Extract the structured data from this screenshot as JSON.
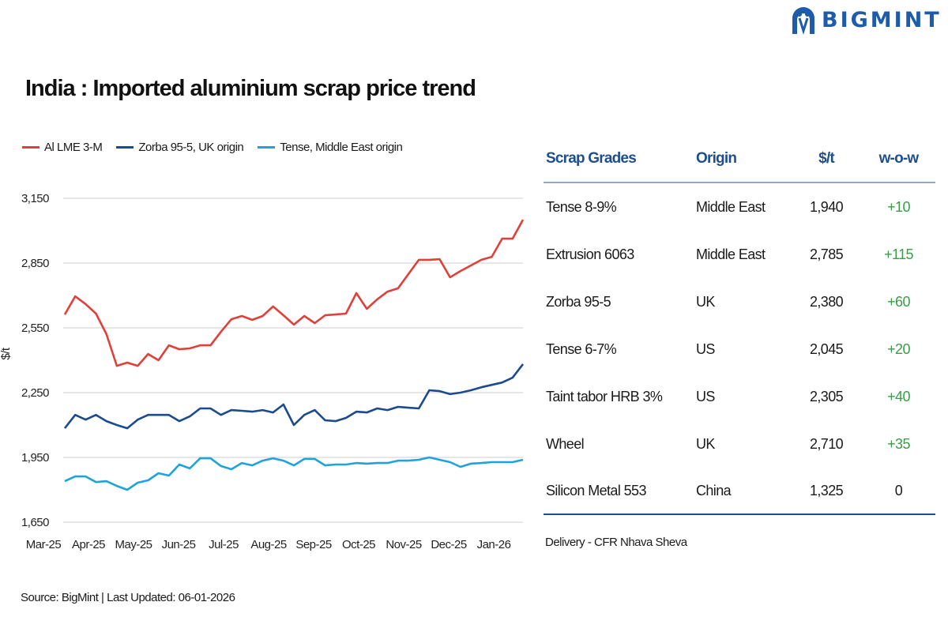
{
  "brand": {
    "name": "BIGMINT",
    "color": "#1f5bab"
  },
  "title": "India : Imported aluminium scrap price trend",
  "chart_data": {
    "type": "line",
    "ylabel": "$/t",
    "xlabel": "",
    "ylim": [
      1650,
      3150
    ],
    "yticks": [
      "3,150",
      "2,850",
      "2,550",
      "2,250",
      "1,950",
      "1,650"
    ],
    "ytick_values": [
      3150,
      2850,
      2550,
      2250,
      1950,
      1650
    ],
    "xticks": [
      "Mar-25",
      "Apr-25",
      "May-25",
      "Jun-25",
      "Jul-25",
      "Aug-25",
      "Sep-25",
      "Oct-25",
      "Nov-25",
      "Dec-25",
      "Jan-26"
    ],
    "grid": true,
    "legend": "top-left",
    "series": [
      {
        "name": "Al LME 3-M",
        "color": "#e0403a",
        "values": [
          2612,
          2696,
          2660,
          2616,
          2521,
          2374,
          2389,
          2374,
          2429,
          2400,
          2469,
          2451,
          2455,
          2469,
          2469,
          2532,
          2590,
          2605,
          2587,
          2605,
          2649,
          2608,
          2565,
          2605,
          2572,
          2608,
          2612,
          2616,
          2711,
          2638,
          2682,
          2718,
          2733,
          2799,
          2865,
          2865,
          2868,
          2784,
          2813,
          2839,
          2865,
          2879,
          2963,
          2963,
          3051
        ]
      },
      {
        "name": "Zorba 95-5, UK origin",
        "color": "#1b4a8f",
        "values": [
          2085,
          2147,
          2125,
          2147,
          2118,
          2100,
          2085,
          2125,
          2147,
          2147,
          2147,
          2118,
          2140,
          2177,
          2177,
          2147,
          2169,
          2166,
          2162,
          2169,
          2158,
          2195,
          2100,
          2147,
          2169,
          2122,
          2118,
          2133,
          2162,
          2158,
          2177,
          2169,
          2184,
          2180,
          2177,
          2261,
          2257,
          2243,
          2250,
          2261,
          2275,
          2286,
          2297,
          2319,
          2382
        ]
      },
      {
        "name": "Tense, Middle East origin",
        "color": "#1fa3dc",
        "values": [
          1840,
          1862,
          1862,
          1836,
          1840,
          1818,
          1800,
          1833,
          1844,
          1877,
          1866,
          1917,
          1899,
          1946,
          1946,
          1910,
          1895,
          1924,
          1913,
          1935,
          1946,
          1935,
          1913,
          1943,
          1943,
          1913,
          1917,
          1917,
          1924,
          1921,
          1924,
          1924,
          1935,
          1935,
          1939,
          1950,
          1939,
          1928,
          1906,
          1921,
          1924,
          1928,
          1928,
          1928,
          1939
        ]
      }
    ]
  },
  "table": {
    "headers": [
      "Scrap Grades",
      "Origin",
      "$/t",
      "w-o-w"
    ],
    "rows": [
      {
        "grade": "Tense 8-9%",
        "origin": "Middle East",
        "price": "1,940",
        "wow": "+10"
      },
      {
        "grade": "Extrusion 6063",
        "origin": "Middle East",
        "price": "2,785",
        "wow": "+115"
      },
      {
        "grade": "Zorba 95-5",
        "origin": "UK",
        "price": "2,380",
        "wow": "+60"
      },
      {
        "grade": "Tense 6-7%",
        "origin": "US",
        "price": "2,045",
        "wow": "+20"
      },
      {
        "grade": "Taint tabor HRB 3%",
        "origin": "US",
        "price": "2,305",
        "wow": "+40"
      },
      {
        "grade": "Wheel",
        "origin": "UK",
        "price": "2,710",
        "wow": "+35"
      },
      {
        "grade": "Silicon Metal 553",
        "origin": "China",
        "price": "1,325",
        "wow": "0"
      }
    ],
    "header_color": "#1f4e8c",
    "positive_color": "#3d9b4a"
  },
  "delivery_note": "Delivery - CFR Nhava Sheva",
  "source": "Source: BigMint | Last Updated: 06-01-2026"
}
